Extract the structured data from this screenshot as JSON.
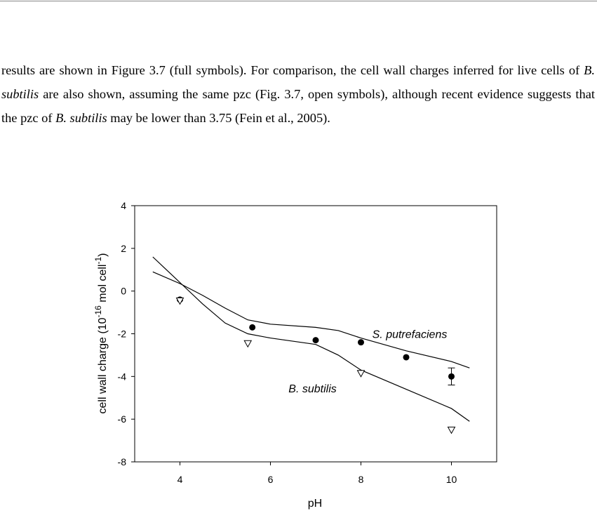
{
  "paragraph": [
    {
      "text": "results are shown in Figure 3.7 (full symbols). For comparison, the cell wall charges inferred for live cells of "
    },
    {
      "text": "B. subtilis",
      "italic": true
    },
    {
      "text": " are also shown, assuming the same pzc (Fig. 3.7, open symbols), although recent evidence suggests that the pzc of "
    },
    {
      "text": "B. subtilis",
      "italic": true
    },
    {
      "text": " may be lower than 3.75 (Fein et al., 2005)."
    }
  ],
  "chart_data": {
    "type": "scatter",
    "xlabel": "pH",
    "ylabel_parts": [
      "cell wall charge (10",
      "-16",
      " mol cell",
      "-1",
      ")"
    ],
    "xlim": [
      3,
      11
    ],
    "xticks": [
      4,
      6,
      8,
      10
    ],
    "ylim": [
      -8,
      4
    ],
    "yticks": [
      -8,
      -6,
      -4,
      -2,
      0,
      2,
      4
    ],
    "series": [
      {
        "name": "S. putrefaciens",
        "marker": "filled-circle",
        "color": "#000000",
        "x": [
          4,
          5.6,
          7,
          8,
          9,
          10
        ],
        "values": [
          -0.4,
          -1.7,
          -2.3,
          -2.4,
          -3.1,
          -4.0
        ],
        "errors": [
          null,
          null,
          null,
          null,
          null,
          0.4
        ],
        "fit": {
          "x": [
            3.4,
            4,
            4.5,
            5,
            5.5,
            6,
            7,
            7.5,
            8,
            9,
            10,
            10.4
          ],
          "values": [
            0.9,
            0.35,
            -0.2,
            -0.8,
            -1.35,
            -1.55,
            -1.7,
            -1.85,
            -2.2,
            -2.8,
            -3.3,
            -3.6
          ]
        }
      },
      {
        "name": "B. subtilis",
        "marker": "open-triangle",
        "color": "#000000",
        "x": [
          4,
          5.5,
          8,
          10
        ],
        "values": [
          -0.45,
          -2.45,
          -3.85,
          -6.5
        ],
        "fit": {
          "x": [
            3.4,
            4,
            4.5,
            5,
            5.5,
            6,
            7,
            7.5,
            8,
            9,
            10,
            10.4
          ],
          "values": [
            1.6,
            0.4,
            -0.6,
            -1.5,
            -2.0,
            -2.2,
            -2.5,
            -3.0,
            -3.7,
            -4.6,
            -5.5,
            -6.1
          ]
        }
      }
    ]
  }
}
